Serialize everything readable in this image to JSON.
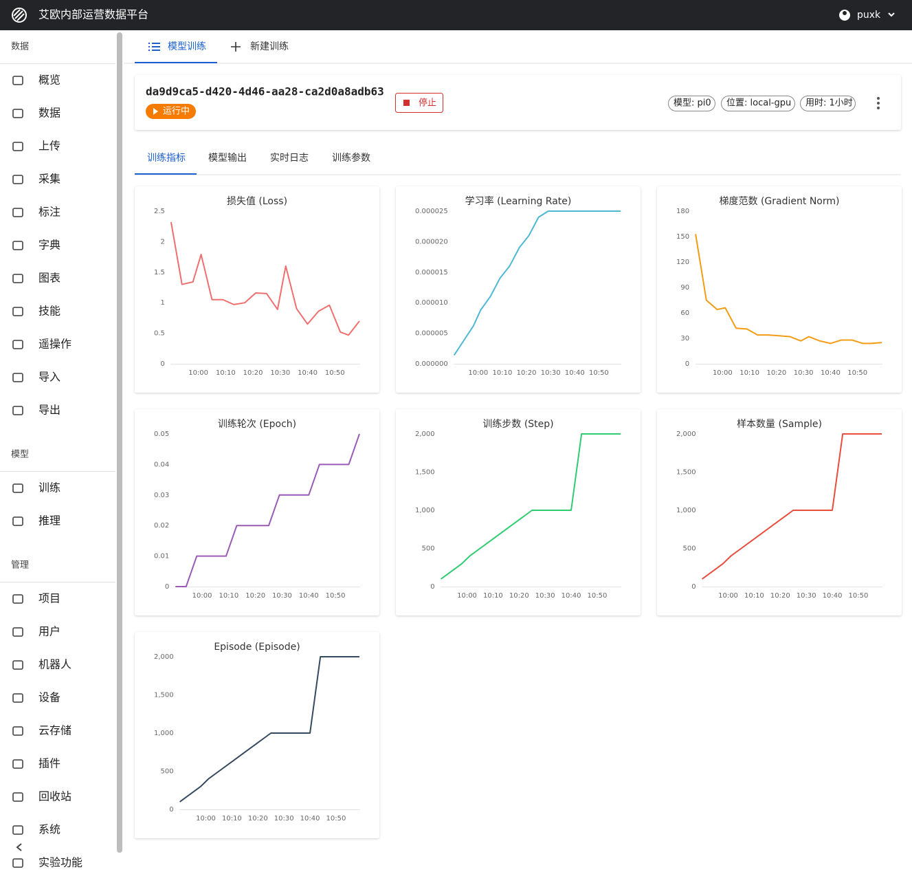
{
  "header": {
    "title": "艾欧内部运营数据平台",
    "user": "puxk"
  },
  "sidebar": {
    "sections": [
      {
        "title": "数据",
        "items": [
          "概览",
          "数据",
          "上传",
          "采集",
          "标注",
          "字典",
          "图表",
          "技能",
          "遥操作",
          "导入",
          "导出"
        ]
      },
      {
        "title": "模型",
        "items": [
          "训练",
          "推理"
        ]
      },
      {
        "title": "管理",
        "items": [
          "项目",
          "用户",
          "机器人",
          "设备",
          "云存储",
          "插件",
          "回收站",
          "系统",
          "实验功能"
        ]
      }
    ]
  },
  "tabs": [
    "模型训练",
    "新建训练"
  ],
  "job": {
    "id": "da9d9ca5-d420-4d46-aa28-ca2d0a8adb63",
    "status": "运行中",
    "stop": "停止",
    "chips": [
      "模型: pi0",
      "位置: local-gpu",
      "用时: 1小时"
    ]
  },
  "subtabs": [
    "训练指标",
    "模型输出",
    "实时日志",
    "训练参数"
  ],
  "chart_data": [
    {
      "type": "line",
      "title": "损失值 (Loss)",
      "color": "#f06e6e",
      "grid": false,
      "x": [
        "09:50",
        "09:54",
        "09:58",
        "10:01",
        "10:05",
        "10:09",
        "10:13",
        "10:17",
        "10:21",
        "10:25",
        "10:29",
        "10:32",
        "10:36",
        "10:40",
        "10:44",
        "10:48",
        "10:52",
        "10:55",
        "10:59"
      ],
      "values": [
        2.32,
        1.3,
        1.34,
        1.79,
        1.05,
        1.05,
        0.97,
        1.0,
        1.16,
        1.15,
        0.89,
        1.6,
        0.9,
        0.65,
        0.86,
        0.96,
        0.52,
        0.47,
        0.7
      ],
      "xlim": [
        "09:50",
        "10:59"
      ],
      "xticks": [
        "10:00",
        "10:10",
        "10:20",
        "10:30",
        "10:40",
        "10:50"
      ],
      "ylim": [
        0,
        2.5
      ],
      "yticks": [
        0,
        0.5,
        1,
        1.5,
        2,
        2.5
      ]
    },
    {
      "type": "line",
      "title": "学习率 (Learning Rate)",
      "color": "#4cb8d4",
      "grid": false,
      "x": [
        "09:50",
        "09:54",
        "09:58",
        "10:01",
        "10:05",
        "10:09",
        "10:13",
        "10:17",
        "10:21",
        "10:25",
        "10:29",
        "10:32",
        "10:36",
        "10:40",
        "10:44",
        "10:48",
        "10:52",
        "10:55",
        "10:59"
      ],
      "values": [
        1.4e-06,
        3.8e-06,
        6.2e-06,
        8.8e-06,
        1.1e-05,
        1.4e-05,
        1.6e-05,
        1.9e-05,
        2.1e-05,
        2.4e-05,
        2.5e-05,
        2.5e-05,
        2.5e-05,
        2.5e-05,
        2.5e-05,
        2.5e-05,
        2.5e-05,
        2.5e-05,
        2.5e-05
      ],
      "xlim": [
        "09:50",
        "10:59"
      ],
      "xticks": [
        "10:00",
        "10:10",
        "10:20",
        "10:30",
        "10:40",
        "10:50"
      ],
      "ylim": [
        0,
        2.5e-05
      ],
      "yticks": [
        {
          "value": 0,
          "label": "0.000000"
        },
        {
          "value": 5e-06,
          "label": "0.000005"
        },
        {
          "value": 1e-05,
          "label": "0.000010"
        },
        {
          "value": 1.5e-05,
          "label": "0.000015"
        },
        {
          "value": 2e-05,
          "label": "0.000020"
        },
        {
          "value": 2.5e-05,
          "label": "0.000025"
        }
      ]
    },
    {
      "type": "line",
      "title": "梯度范数 (Gradient Norm)",
      "color": "#f39c12",
      "grid": false,
      "x": [
        "09:50",
        "09:54",
        "09:58",
        "10:01",
        "10:05",
        "10:09",
        "10:13",
        "10:17",
        "10:21",
        "10:25",
        "10:29",
        "10:32",
        "10:36",
        "10:40",
        "10:44",
        "10:48",
        "10:52",
        "10:55",
        "10:59"
      ],
      "values": [
        153,
        75,
        64,
        66,
        42,
        41,
        34,
        34,
        33,
        32,
        27,
        32,
        27,
        24,
        28,
        28,
        24,
        24,
        25
      ],
      "xlim": [
        "09:50",
        "10:59"
      ],
      "xticks": [
        "10:00",
        "10:10",
        "10:20",
        "10:30",
        "10:40",
        "10:50"
      ],
      "ylim": [
        0,
        180
      ],
      "yticks": [
        0,
        30,
        60,
        90,
        120,
        150,
        180
      ]
    },
    {
      "type": "line",
      "title": "训练轮次 (Epoch)",
      "color": "#9b59b6",
      "grid": false,
      "x": [
        "09:50",
        "09:54",
        "09:58",
        "10:01",
        "10:05",
        "10:09",
        "10:13",
        "10:17",
        "10:21",
        "10:25",
        "10:29",
        "10:32",
        "10:36",
        "10:40",
        "10:44",
        "10:48",
        "10:52",
        "10:55",
        "10:59"
      ],
      "values": [
        0,
        0,
        0.01,
        0.01,
        0.01,
        0.01,
        0.02,
        0.02,
        0.02,
        0.02,
        0.03,
        0.03,
        0.03,
        0.03,
        0.04,
        0.04,
        0.04,
        0.04,
        0.05
      ],
      "xlim": [
        "09:50",
        "10:59"
      ],
      "xticks": [
        "10:00",
        "10:10",
        "10:20",
        "10:30",
        "10:40",
        "10:50"
      ],
      "ylim": [
        0,
        0.05
      ],
      "yticks": [
        0,
        0.01,
        0.02,
        0.03,
        0.04,
        0.05
      ]
    },
    {
      "type": "line",
      "title": "训练步数 (Step)",
      "color": "#2ecc71",
      "grid": false,
      "x": [
        "09:50",
        "09:54",
        "09:58",
        "10:01",
        "10:05",
        "10:09",
        "10:13",
        "10:17",
        "10:21",
        "10:25",
        "10:29",
        "10:32",
        "10:36",
        "10:40",
        "10:44",
        "10:48",
        "10:52",
        "10:55",
        "10:59"
      ],
      "values": [
        100,
        200,
        300,
        400,
        500,
        600,
        700,
        800,
        900,
        1000,
        1000,
        1000,
        1000,
        1000,
        2000,
        2000,
        2000,
        2000,
        2000
      ],
      "xlim": [
        "09:50",
        "10:59"
      ],
      "xticks": [
        "10:00",
        "10:10",
        "10:20",
        "10:30",
        "10:40",
        "10:50"
      ],
      "ylim": [
        0,
        2000
      ],
      "yticks": [
        0,
        500,
        {
          "value": 1000,
          "label": "1,000"
        },
        {
          "value": 1500,
          "label": "1,500"
        },
        {
          "value": 2000,
          "label": "2,000"
        }
      ]
    },
    {
      "type": "line",
      "title": "样本数量 (Sample)",
      "color": "#e74c3c",
      "grid": false,
      "x": [
        "09:50",
        "09:54",
        "09:58",
        "10:01",
        "10:05",
        "10:09",
        "10:13",
        "10:17",
        "10:21",
        "10:25",
        "10:29",
        "10:32",
        "10:36",
        "10:40",
        "10:44",
        "10:48",
        "10:52",
        "10:55",
        "10:59"
      ],
      "values": [
        100,
        200,
        300,
        400,
        500,
        600,
        700,
        800,
        900,
        1000,
        1000,
        1000,
        1000,
        1000,
        2000,
        2000,
        2000,
        2000,
        2000
      ],
      "xlim": [
        "09:50",
        "10:59"
      ],
      "xticks": [
        "10:00",
        "10:10",
        "10:20",
        "10:30",
        "10:40",
        "10:50"
      ],
      "ylim": [
        0,
        2000
      ],
      "yticks": [
        0,
        500,
        {
          "value": 1000,
          "label": "1,000"
        },
        {
          "value": 1500,
          "label": "1,500"
        },
        {
          "value": 2000,
          "label": "2,000"
        }
      ]
    },
    {
      "type": "line",
      "title": "Episode (Episode)",
      "color": "#34495e",
      "grid": false,
      "x": [
        "09:50",
        "09:54",
        "09:58",
        "10:01",
        "10:05",
        "10:09",
        "10:13",
        "10:17",
        "10:21",
        "10:25",
        "10:29",
        "10:32",
        "10:36",
        "10:40",
        "10:44",
        "10:48",
        "10:52",
        "10:55",
        "10:59"
      ],
      "values": [
        100,
        200,
        300,
        400,
        500,
        600,
        700,
        800,
        900,
        1000,
        1000,
        1000,
        1000,
        1000,
        2000,
        2000,
        2000,
        2000,
        2000
      ],
      "xlim": [
        "09:50",
        "10:59"
      ],
      "xticks": [
        "10:00",
        "10:10",
        "10:20",
        "10:30",
        "10:40",
        "10:50"
      ],
      "ylim": [
        0,
        2000
      ],
      "yticks": [
        0,
        500,
        {
          "value": 1000,
          "label": "1,000"
        },
        {
          "value": 1500,
          "label": "1,500"
        },
        {
          "value": 2000,
          "label": "2,000"
        }
      ]
    }
  ]
}
